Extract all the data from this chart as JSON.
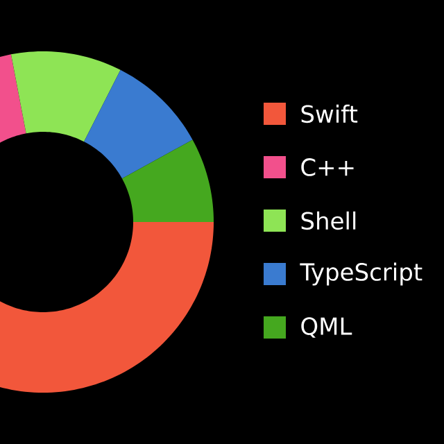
{
  "chart_data": {
    "type": "donut",
    "categories": [
      "Swift",
      "C++",
      "Shell",
      "TypeScript",
      "QML"
    ],
    "values": [
      55,
      17,
      10.5,
      9.5,
      8
    ],
    "colors": [
      "#f2573b",
      "#f2508c",
      "#8ee455",
      "#3a7bd0",
      "#45a81f"
    ],
    "legend": "right"
  }
}
